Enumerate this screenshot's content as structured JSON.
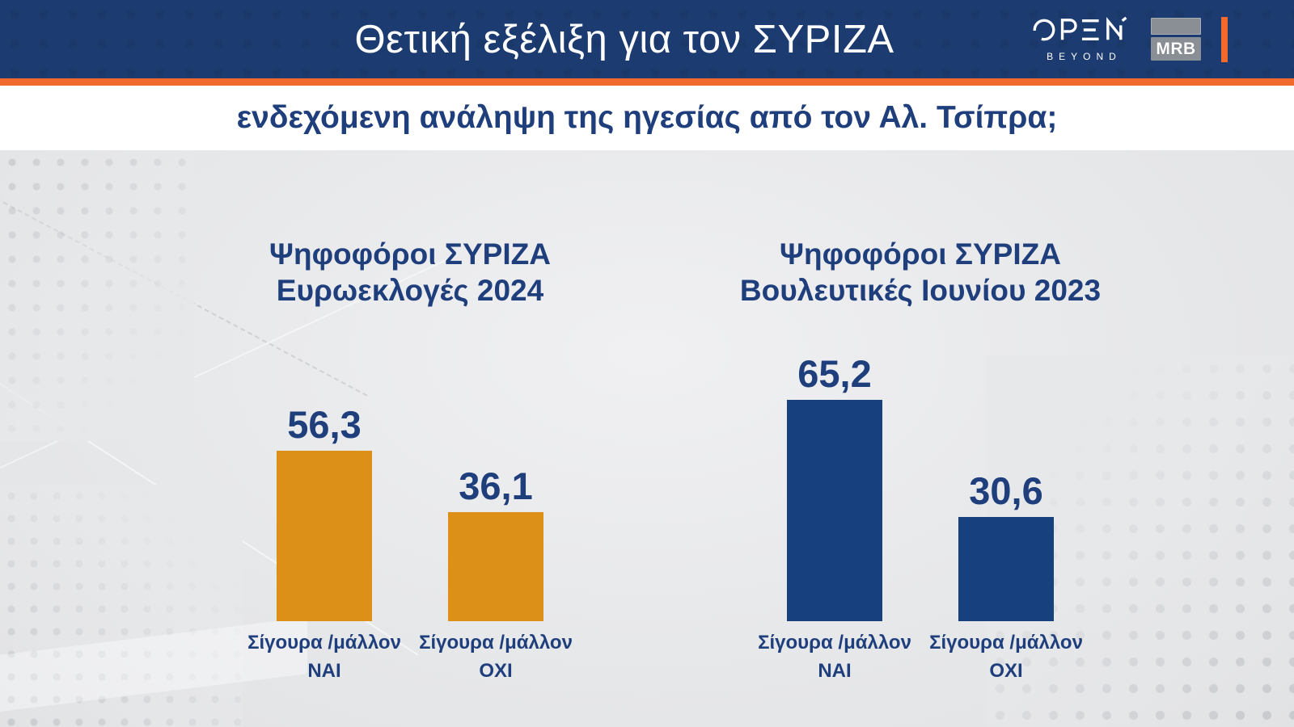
{
  "header": {
    "title": "Θετική εξέλιξη για τον ΣΥΡΙΖΑ",
    "open_logo": {
      "name": "OPEN",
      "tagline": "BEYOND"
    },
    "mrb_logo_text": "MRB"
  },
  "question_banner": "ενδεχόμενη ανάληψη της ηγεσίας από τον Αλ. Τσίπρα;",
  "colors": {
    "header_bg": "#1c3b70",
    "accent_orange": "#f2692c",
    "bar_orange": "#dc9018",
    "bar_blue": "#17407e",
    "text_navy": "#1f3e7c",
    "content_bg": "#e7e8ea"
  },
  "chart_data": [
    {
      "type": "bar",
      "title": [
        "Ψηφοφόροι ΣΥΡΙΖΑ",
        "Ευρωεκλογές 2024"
      ],
      "bar_color": "#dc9018",
      "ylim": [
        0,
        100
      ],
      "grid": false,
      "legend": "none",
      "bars": [
        {
          "value": 56.3,
          "value_label": "56,3",
          "category": [
            "Σίγουρα /μάλλον",
            "ΝΑΙ"
          ]
        },
        {
          "value": 36.1,
          "value_label": "36,1",
          "category": [
            "Σίγουρα /μάλλον",
            "ΟΧΙ"
          ]
        }
      ]
    },
    {
      "type": "bar",
      "title": [
        "Ψηφοφόροι ΣΥΡΙΖΑ",
        "Βουλευτικές Ιουνίου 2023"
      ],
      "bar_color": "#17407e",
      "ylim": [
        0,
        100
      ],
      "grid": false,
      "legend": "none",
      "bars": [
        {
          "value": 65.2,
          "value_label": "65,2",
          "category": [
            "Σίγουρα /μάλλον",
            "ΝΑΙ"
          ]
        },
        {
          "value": 30.6,
          "value_label": "30,6",
          "category": [
            "Σίγουρα /μάλλον",
            "ΟΧΙ"
          ]
        }
      ]
    }
  ]
}
